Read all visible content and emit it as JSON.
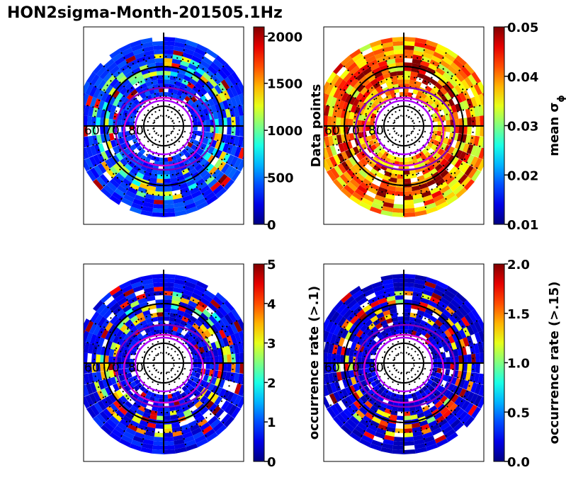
{
  "title": "HON2sigma-Month-201505.1Hz",
  "chart_data": [
    {
      "type": "heatmap",
      "projection": "polar",
      "lat_labels": [
        "60",
        "70",
        "80"
      ],
      "colormap": "jet",
      "colorbar": {
        "label": "Data points",
        "range": [
          0,
          2100
        ],
        "ticks": [
          "0",
          "500",
          "1000",
          "1500",
          "2000"
        ],
        "tick_values": [
          0,
          500,
          1000,
          1500,
          2000
        ]
      },
      "value_pattern": {
        "base": 0.12,
        "amp": 0.1,
        "inner_boost": 0.15,
        "seed": 3
      }
    },
    {
      "type": "heatmap",
      "projection": "polar",
      "lat_labels": [
        "60",
        "70",
        "80"
      ],
      "colormap": "jet",
      "colorbar": {
        "label": "mean σ",
        "label_sub": "ϕ",
        "range": [
          0.01,
          0.05
        ],
        "ticks": [
          "0.01",
          "0.02",
          "0.03",
          "0.04",
          "0.05"
        ],
        "tick_values": [
          0.01,
          0.02,
          0.03,
          0.04,
          0.05
        ]
      },
      "value_pattern": {
        "base": 0.55,
        "amp": 0.3,
        "inner_boost": 0.1,
        "seed": 7
      }
    },
    {
      "type": "heatmap",
      "projection": "polar",
      "lat_labels": [
        "60",
        "70",
        "80"
      ],
      "colormap": "jet",
      "colorbar": {
        "label": "occurrence rate (>.1)",
        "range": [
          0,
          5
        ],
        "ticks": [
          "0",
          "1",
          "2",
          "3",
          "4",
          "5"
        ],
        "tick_values": [
          0,
          1,
          2,
          3,
          4,
          5
        ]
      },
      "value_pattern": {
        "base": 0.06,
        "amp": 0.12,
        "inner_boost": 0.3,
        "seed": 11
      }
    },
    {
      "type": "heatmap",
      "projection": "polar",
      "lat_labels": [
        "60",
        "70",
        "80"
      ],
      "colormap": "jet",
      "colorbar": {
        "label": "occurrence rate (>.15)",
        "range": [
          0,
          2
        ],
        "ticks": [
          "0.0",
          "0.5",
          "1.0",
          "1.5",
          "2.0"
        ],
        "tick_values": [
          0,
          0.5,
          1.0,
          1.5,
          2.0
        ]
      },
      "value_pattern": {
        "base": 0.04,
        "amp": 0.1,
        "inner_boost": 0.45,
        "seed": 19
      }
    }
  ]
}
